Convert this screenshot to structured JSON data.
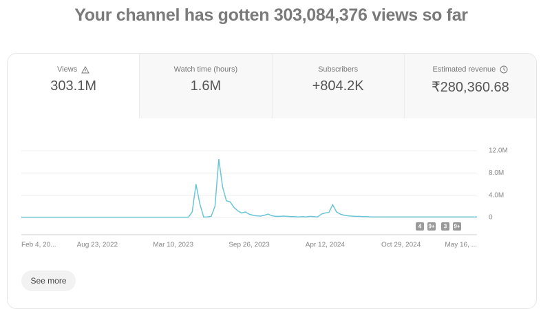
{
  "header": {
    "title": "Your channel has gotten 303,084,376 views so far"
  },
  "metrics": [
    {
      "label": "Views",
      "value": "303.1M"
    },
    {
      "label": "Watch time (hours)",
      "value": "1.6M"
    },
    {
      "label": "Subscribers",
      "value": "+804.2K"
    },
    {
      "label": "Estimated revenue",
      "value": "₹280,360.68"
    }
  ],
  "chart_data": {
    "type": "line",
    "series": [
      {
        "name": "Views",
        "color": "#6cc5d6",
        "values": [
          50000,
          50000,
          50000,
          50000,
          50000,
          50000,
          50000,
          50000,
          50000,
          50000,
          50000,
          50000,
          50000,
          50000,
          50000,
          50000,
          50000,
          50000,
          50000,
          50000,
          50000,
          50000,
          50000,
          50000,
          50000,
          50000,
          50000,
          50000,
          50000,
          50000,
          50000,
          50000,
          50000,
          50000,
          50000,
          50000,
          50000,
          50000,
          50000,
          50000,
          50000,
          50000,
          50000,
          50000,
          50000,
          1000000,
          6000000,
          2500000,
          100000,
          100000,
          200000,
          2000000,
          10500000,
          5500000,
          3000000,
          2800000,
          1800000,
          1200000,
          800000,
          1000000,
          600000,
          400000,
          300000,
          250000,
          400000,
          600000,
          300000,
          200000,
          200000,
          250000,
          200000,
          150000,
          150000,
          100000,
          150000,
          100000,
          200000,
          150000,
          100000,
          600000,
          800000,
          900000,
          2300000,
          1000000,
          600000,
          400000,
          300000,
          250000,
          200000,
          200000,
          150000,
          150000,
          100000,
          100000,
          100000,
          100000,
          100000,
          100000,
          100000,
          100000,
          100000,
          100000,
          100000,
          100000,
          100000,
          100000,
          100000,
          100000,
          100000,
          100000,
          100000,
          100000,
          100000,
          100000,
          100000,
          100000,
          100000,
          100000,
          100000,
          100000,
          100000
        ]
      }
    ],
    "ylim": [
      0,
      12000000
    ],
    "yticks": [
      0,
      {
        "value": 4000000,
        "label": "4.0M"
      },
      {
        "value": 8000000,
        "label": "8.0M"
      },
      {
        "value": 12000000,
        "label": "12.0M"
      }
    ],
    "xticks": [
      {
        "value": 0,
        "label": "Feb 4, 20..."
      },
      {
        "value": 20,
        "label": "Aug 23, 2022"
      },
      {
        "value": 40,
        "label": "Mar 10, 2023"
      },
      {
        "value": 60,
        "label": "Sep 26, 2023"
      },
      {
        "value": 80,
        "label": "Apr 12, 2024"
      },
      {
        "value": 100,
        "label": "Oct 29, 2024"
      },
      {
        "value": 120,
        "label": "May 16, ..."
      }
    ],
    "grid": true,
    "annotations": [
      "4",
      "9+",
      "3",
      "9+"
    ]
  },
  "button": {
    "label": "See more"
  }
}
